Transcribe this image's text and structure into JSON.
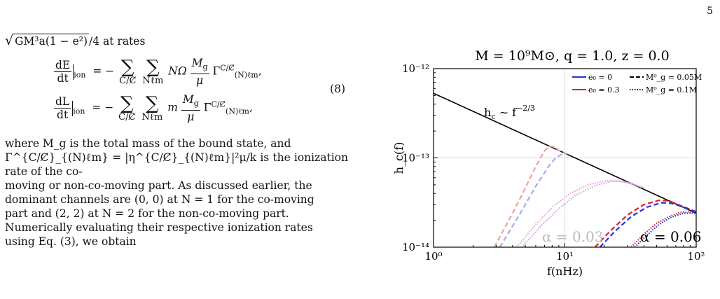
{
  "page_number": "5",
  "intro_formula": "GM³a(1 − e²)",
  "intro_suffix": "/4 at rates",
  "equation": {
    "row1_lhs_num": "dE",
    "row1_lhs_den": "dt",
    "row2_lhs_num": "dL",
    "row2_lhs_den": "dt",
    "ion_sub": "ion",
    "sum_sub1": "C/C̸",
    "sum_sub2": "Nℓm",
    "row1_factor": "NΩ",
    "row2_factor": "m",
    "frac_num": "M",
    "frac_num_sub": "g",
    "frac_den": "μ",
    "gamma": "Γ",
    "gamma_sup": "C/C̸",
    "gamma_sub": "(N)ℓm",
    "number": "(8)"
  },
  "paragraph": {
    "line1": "where M_g is the total mass of the bound state, and",
    "line2": "Γ^{C/C̸}_{(N)ℓm} = |η^{C/C̸}_{(N)ℓm}|²μ/k is the ionization rate of the co-",
    "line3": "moving or non-co-moving part. As discussed earlier, the",
    "line4": "dominant channels are (0, 0) at N = 1 for the co-moving",
    "line5": "part and (2, 2) at N = 2 for the non-co-moving part.",
    "line6": "Numerically evaluating their respective ionization rates",
    "line7": "using Eq. (3), we obtain"
  },
  "chart_data": {
    "type": "line",
    "title": "M = 10⁹M⊙, q = 1.0, z = 0.0",
    "xlabel": "f(nHz)",
    "ylabel": "h_c(f)",
    "xscale": "log",
    "yscale": "log",
    "xlim": [
      1,
      100
    ],
    "ylim": [
      1e-14,
      1e-12
    ],
    "x_ticks": [
      "10⁰",
      "10¹",
      "10²"
    ],
    "y_ticks": [
      "10⁻¹⁴",
      "10⁻¹³",
      "10⁻¹²"
    ],
    "grid": true,
    "legend_position": "top-right",
    "legend": [
      {
        "label": "e₀ = 0",
        "color": "#2233dd",
        "style": "solid"
      },
      {
        "label": "e₀ = 0.3",
        "color": "#dd2222",
        "style": "solid"
      },
      {
        "label": "M⁰_g = 0.05M",
        "color": "#000000",
        "style": "dashed"
      },
      {
        "label": "M⁰_g = 0.1M",
        "color": "#000000",
        "style": "dotted"
      }
    ],
    "annotations": [
      {
        "text": "h_c ∼ f^{−2/3}",
        "display": "h",
        "sub": "c",
        "mid": " ∼ f",
        "sup": "−2/3"
      },
      {
        "text": "α = 0.03",
        "color": "#bbbbbb"
      },
      {
        "text": "α = 0.06",
        "color": "#000000"
      }
    ],
    "series": [
      {
        "name": "",
        "style": "solid",
        "color": "#000000",
        "points": [
          [
            1,
            5.3e-13
          ],
          [
            100,
            2.4e-14
          ]
        ]
      },
      {
        "name": "",
        "style": "dashed",
        "color": "#f0a0a0",
        "alpha_group": "0.03",
        "points": [
          [
            2.9,
            1e-14
          ],
          [
            4,
            2.4e-14
          ],
          [
            5,
            4.6e-14
          ],
          [
            6,
            8e-14
          ],
          [
            7,
            1.2e-13
          ],
          [
            7.6,
            1.36e-13
          ],
          [
            8.2,
            1.33e-13
          ],
          [
            9,
            1.22e-13
          ],
          [
            10,
            1.14e-13
          ]
        ]
      },
      {
        "name": "",
        "style": "dashed",
        "color": "#a8a8ee",
        "alpha_group": "0.03",
        "points": [
          [
            3.2,
            1e-14
          ],
          [
            4.5,
            2.3e-14
          ],
          [
            6,
            4.8e-14
          ],
          [
            7.5,
            8e-14
          ],
          [
            8.5,
            1e-13
          ],
          [
            9.5,
            1.1e-13
          ],
          [
            10.5,
            1.12e-13
          ]
        ]
      },
      {
        "name": "",
        "style": "dotted",
        "color": "#e8a0c8",
        "alpha_group": "0.03",
        "points": [
          [
            4.3,
            1e-14
          ],
          [
            6,
            1.8e-14
          ],
          [
            8,
            2.8e-14
          ],
          [
            11,
            4e-14
          ],
          [
            15,
            5e-14
          ],
          [
            20,
            5.5e-14
          ],
          [
            23,
            5.6e-14
          ],
          [
            30,
            5.3e-14
          ],
          [
            40,
            4.6e-14
          ]
        ]
      },
      {
        "name": "",
        "style": "dotted",
        "color": "#c0a8e8",
        "alpha_group": "0.03",
        "points": [
          [
            4.7,
            1e-14
          ],
          [
            6.5,
            1.7e-14
          ],
          [
            9,
            2.7e-14
          ],
          [
            12,
            3.8e-14
          ],
          [
            17,
            4.9e-14
          ],
          [
            22,
            5.4e-14
          ],
          [
            26,
            5.5e-14
          ],
          [
            32,
            5.2e-14
          ],
          [
            40,
            4.6e-14
          ]
        ]
      },
      {
        "name": "",
        "style": "dashed",
        "color": "#dd2222",
        "alpha_group": "0.06",
        "points": [
          [
            17,
            1e-14
          ],
          [
            22,
            1.5e-14
          ],
          [
            30,
            2.3e-14
          ],
          [
            40,
            3e-14
          ],
          [
            52,
            3.35e-14
          ],
          [
            62,
            3.3e-14
          ],
          [
            75,
            2.95e-14
          ],
          [
            90,
            2.65e-14
          ],
          [
            100,
            2.5e-14
          ]
        ]
      },
      {
        "name": "",
        "style": "dashed",
        "color": "#2233dd",
        "alpha_group": "0.06",
        "points": [
          [
            18.5,
            1e-14
          ],
          [
            24,
            1.5e-14
          ],
          [
            32,
            2.2e-14
          ],
          [
            42,
            2.8e-14
          ],
          [
            54,
            3.15e-14
          ],
          [
            65,
            3.1e-14
          ],
          [
            78,
            2.85e-14
          ],
          [
            100,
            2.45e-14
          ]
        ]
      },
      {
        "name": "",
        "style": "dotted",
        "color": "#dd2222",
        "alpha_group": "0.06",
        "points": [
          [
            32,
            1e-14
          ],
          [
            40,
            1.4e-14
          ],
          [
            50,
            1.85e-14
          ],
          [
            62,
            2.2e-14
          ],
          [
            75,
            2.45e-14
          ],
          [
            88,
            2.5e-14
          ],
          [
            100,
            2.45e-14
          ]
        ]
      },
      {
        "name": "",
        "style": "dotted",
        "color": "#2233dd",
        "alpha_group": "0.06",
        "points": [
          [
            34,
            1e-14
          ],
          [
            42,
            1.35e-14
          ],
          [
            52,
            1.8e-14
          ],
          [
            64,
            2.15e-14
          ],
          [
            78,
            2.38e-14
          ],
          [
            92,
            2.42e-14
          ],
          [
            100,
            2.4e-14
          ]
        ]
      }
    ]
  }
}
